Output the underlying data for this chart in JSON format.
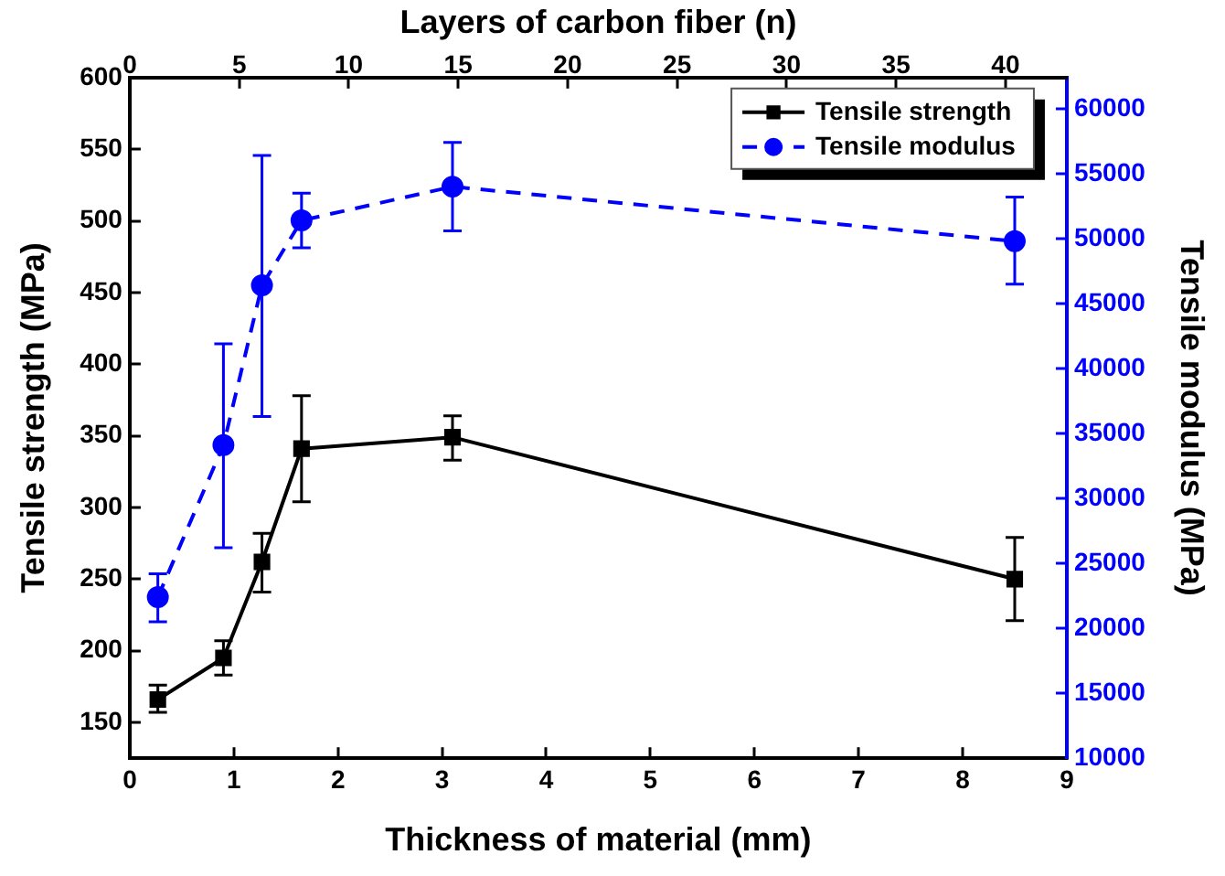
{
  "chart_data": {
    "type": "line",
    "xlabel": "Thickness of material (mm)",
    "ylabel": "Tensile strength (MPa)",
    "y2label": "Tensile modulus (MPa)",
    "x2label": "Layers of carbon fiber (n)",
    "xlim": [
      0,
      9
    ],
    "xticks": [
      0,
      1,
      2,
      3,
      4,
      5,
      6,
      7,
      8,
      9
    ],
    "ylim": [
      125,
      600
    ],
    "yticks": [
      150,
      200,
      250,
      300,
      350,
      400,
      450,
      500,
      550,
      600
    ],
    "y2lim": [
      10000,
      62400
    ],
    "y2ticks": [
      10000,
      15000,
      20000,
      25000,
      30000,
      35000,
      40000,
      45000,
      50000,
      55000,
      60000
    ],
    "x2lim": [
      0,
      42.8
    ],
    "x2ticks": [
      0,
      5,
      10,
      15,
      20,
      25,
      30,
      35,
      40
    ],
    "x": [
      0.27,
      0.9,
      1.27,
      1.65,
      3.1,
      8.5
    ],
    "series": [
      {
        "name": "Tensile strength",
        "color": "#000000",
        "values": [
          166,
          195,
          262,
          341,
          349,
          250
        ],
        "errors": [
          [
            157,
            176
          ],
          [
            183,
            207
          ],
          [
            241,
            282
          ],
          [
            304,
            378
          ],
          [
            333,
            364
          ],
          [
            221,
            279
          ]
        ],
        "marker": "square",
        "line_style": "solid"
      },
      {
        "name": "Tensile modulus",
        "color": "#0000ff",
        "axis": "y2",
        "values": [
          22400,
          34100,
          46400,
          51400,
          54000,
          49800
        ],
        "errors": [
          [
            20500,
            24200
          ],
          [
            26200,
            41900
          ],
          [
            36300,
            56400
          ],
          [
            49300,
            53500
          ],
          [
            50600,
            57400
          ],
          [
            46500,
            53200
          ]
        ],
        "marker": "circle",
        "line_style": "dashed"
      }
    ],
    "legend": "top right",
    "grid": false
  }
}
